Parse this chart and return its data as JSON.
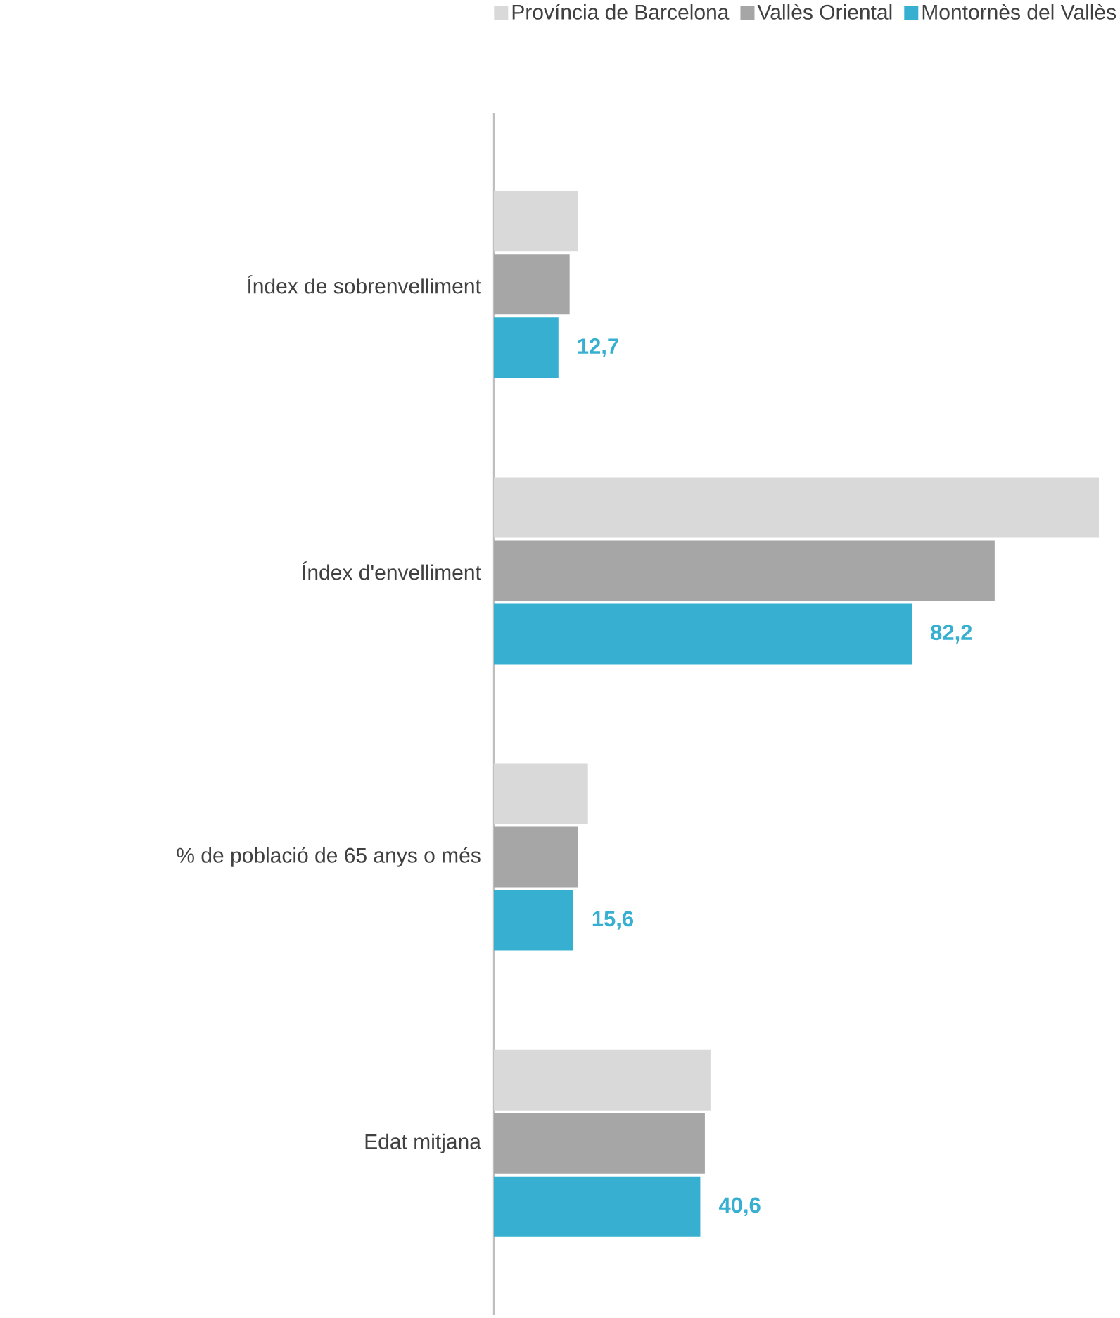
{
  "chart_data": {
    "type": "bar",
    "orientation": "horizontal",
    "categories": [
      "Índex de sobrenvelliment",
      "Índex d'envelliment",
      "% de població de 65 anys o més",
      "Edat mitjana"
    ],
    "series": [
      {
        "name": "Província de Barcelona",
        "color": "#d9d9d9",
        "values": [
          16.6,
          119.0,
          18.5,
          42.6
        ]
      },
      {
        "name": "Vallès Oriental",
        "color": "#a6a6a6",
        "values": [
          14.9,
          98.5,
          16.6,
          41.5
        ]
      },
      {
        "name": "Montornès del Vallès",
        "color": "#36afd0",
        "values": [
          12.7,
          82.2,
          15.6,
          40.6
        ],
        "value_labels": [
          "12,7",
          "82,2",
          "15,6",
          "40,6"
        ]
      }
    ],
    "legend": "top right",
    "tick_labels": "y"
  }
}
